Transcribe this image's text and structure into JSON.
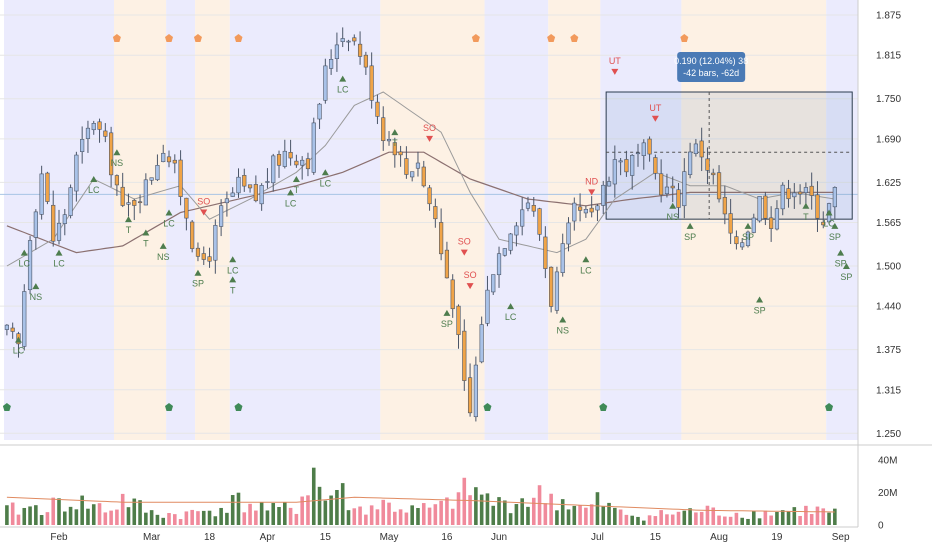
{
  "chart_data": {
    "type": "candlestick",
    "y_axis_ticks": [
      "1.875",
      "1.815",
      "1.750",
      "1.690",
      "1.625",
      "1.565",
      "1.500",
      "1.440",
      "1.375",
      "1.315",
      "1.250"
    ],
    "y_axis_values": [
      1.875,
      1.815,
      1.75,
      1.69,
      1.625,
      1.565,
      1.5,
      1.44,
      1.375,
      1.315,
      1.25
    ],
    "ylim": [
      1.24,
      1.89
    ],
    "volume_axis_ticks": [
      "40M",
      "20M",
      "0"
    ],
    "volume_axis_values": [
      40,
      20,
      0
    ],
    "volume_ylim": [
      0,
      46
    ],
    "x_axis_ticks": [
      "Feb",
      "Mar",
      "18",
      "Apr",
      "15",
      "May",
      "16",
      "Jun",
      "Jul",
      "15",
      "Aug",
      "19",
      "Sep"
    ],
    "x_axis_tick_bars": [
      9,
      25,
      35,
      45,
      55,
      66,
      76,
      85,
      102,
      112,
      123,
      133,
      144
    ],
    "bar_count": 144,
    "ohlc_anchor_closes": [
      [
        0,
        1.4
      ],
      [
        2,
        1.38
      ],
      [
        4,
        1.55
      ],
      [
        6,
        1.64
      ],
      [
        8,
        1.54
      ],
      [
        10,
        1.58
      ],
      [
        12,
        1.66
      ],
      [
        15,
        1.72
      ],
      [
        17,
        1.68
      ],
      [
        19,
        1.62
      ],
      [
        20,
        1.58
      ],
      [
        22,
        1.6
      ],
      [
        24,
        1.62
      ],
      [
        27,
        1.68
      ],
      [
        29,
        1.64
      ],
      [
        31,
        1.58
      ],
      [
        33,
        1.5
      ],
      [
        35,
        1.52
      ],
      [
        37,
        1.58
      ],
      [
        40,
        1.62
      ],
      [
        43,
        1.6
      ],
      [
        46,
        1.65
      ],
      [
        48,
        1.67
      ],
      [
        52,
        1.66
      ],
      [
        55,
        1.79
      ],
      [
        57,
        1.84
      ],
      [
        59,
        1.85
      ],
      [
        61,
        1.82
      ],
      [
        63,
        1.76
      ],
      [
        65,
        1.7
      ],
      [
        67,
        1.68
      ],
      [
        69,
        1.64
      ],
      [
        71,
        1.66
      ],
      [
        72,
        1.62
      ],
      [
        74,
        1.57
      ],
      [
        75,
        1.52
      ],
      [
        77,
        1.45
      ],
      [
        79,
        1.32
      ],
      [
        80,
        1.28
      ],
      [
        82,
        1.42
      ],
      [
        84,
        1.5
      ],
      [
        87,
        1.56
      ],
      [
        90,
        1.6
      ],
      [
        92,
        1.55
      ],
      [
        94,
        1.45
      ],
      [
        96,
        1.52
      ],
      [
        98,
        1.58
      ],
      [
        101,
        1.57
      ],
      [
        103,
        1.62
      ],
      [
        105,
        1.66
      ],
      [
        107,
        1.65
      ],
      [
        110,
        1.67
      ],
      [
        113,
        1.62
      ],
      [
        116,
        1.6
      ],
      [
        118,
        1.68
      ],
      [
        120,
        1.67
      ],
      [
        122,
        1.63
      ],
      [
        124,
        1.57
      ],
      [
        126,
        1.52
      ],
      [
        128,
        1.56
      ],
      [
        130,
        1.6
      ],
      [
        132,
        1.57
      ],
      [
        134,
        1.61
      ],
      [
        136,
        1.62
      ],
      [
        139,
        1.6
      ],
      [
        141,
        1.57
      ],
      [
        143,
        1.61
      ]
    ],
    "volume_anchor_values": [
      [
        0,
        10
      ],
      [
        6,
        12
      ],
      [
        12,
        16
      ],
      [
        18,
        10
      ],
      [
        20,
        18
      ],
      [
        25,
        8
      ],
      [
        30,
        7
      ],
      [
        35,
        10
      ],
      [
        40,
        16
      ],
      [
        46,
        10
      ],
      [
        50,
        12
      ],
      [
        53,
        36
      ],
      [
        55,
        16
      ],
      [
        57,
        26
      ],
      [
        60,
        10
      ],
      [
        65,
        14
      ],
      [
        70,
        10
      ],
      [
        75,
        12
      ],
      [
        80,
        24
      ],
      [
        85,
        14
      ],
      [
        90,
        18
      ],
      [
        93,
        20
      ],
      [
        96,
        16
      ],
      [
        100,
        10
      ],
      [
        102,
        16
      ],
      [
        106,
        8
      ],
      [
        110,
        6
      ],
      [
        115,
        8
      ],
      [
        120,
        10
      ],
      [
        125,
        8
      ],
      [
        130,
        8
      ],
      [
        135,
        10
      ],
      [
        140,
        10
      ],
      [
        143,
        8
      ]
    ],
    "volume_avg_anchors": [
      [
        0,
        17
      ],
      [
        20,
        14
      ],
      [
        50,
        14
      ],
      [
        60,
        17
      ],
      [
        80,
        15
      ],
      [
        100,
        12
      ],
      [
        120,
        9
      ],
      [
        143,
        8
      ]
    ],
    "ma_long_anchors": [
      [
        0,
        1.56
      ],
      [
        12,
        1.52
      ],
      [
        20,
        1.53
      ],
      [
        30,
        1.58
      ],
      [
        40,
        1.6
      ],
      [
        50,
        1.62
      ],
      [
        58,
        1.64
      ],
      [
        66,
        1.67
      ],
      [
        72,
        1.67
      ],
      [
        80,
        1.63
      ],
      [
        90,
        1.6
      ],
      [
        100,
        1.59
      ],
      [
        108,
        1.6
      ],
      [
        118,
        1.61
      ],
      [
        128,
        1.61
      ],
      [
        143,
        1.61
      ]
    ],
    "ma_short_anchors": [
      [
        0,
        1.5
      ],
      [
        8,
        1.54
      ],
      [
        15,
        1.63
      ],
      [
        22,
        1.6
      ],
      [
        30,
        1.62
      ],
      [
        35,
        1.57
      ],
      [
        42,
        1.6
      ],
      [
        50,
        1.64
      ],
      [
        55,
        1.68
      ],
      [
        60,
        1.74
      ],
      [
        65,
        1.76
      ],
      [
        70,
        1.73
      ],
      [
        75,
        1.7
      ],
      [
        80,
        1.61
      ],
      [
        85,
        1.54
      ],
      [
        90,
        1.53
      ],
      [
        95,
        1.52
      ],
      [
        100,
        1.54
      ],
      [
        105,
        1.6
      ],
      [
        112,
        1.64
      ],
      [
        118,
        1.62
      ],
      [
        124,
        1.62
      ],
      [
        130,
        1.6
      ],
      [
        136,
        1.61
      ],
      [
        143,
        1.6
      ]
    ],
    "session_bands": [
      {
        "from": 0,
        "to": 19,
        "color": "#ebebfd"
      },
      {
        "from": 19,
        "to": 28,
        "color": "#fdf1e4"
      },
      {
        "from": 28,
        "to": 33,
        "color": "#ebebfd"
      },
      {
        "from": 33,
        "to": 39,
        "color": "#fdf1e4"
      },
      {
        "from": 39,
        "to": 65,
        "color": "#ebebfd"
      },
      {
        "from": 65,
        "to": 83,
        "color": "#fdf1e4"
      },
      {
        "from": 83,
        "to": 94,
        "color": "#ebebfd"
      },
      {
        "from": 94,
        "to": 103,
        "color": "#fdf1e4"
      },
      {
        "from": 103,
        "to": 117,
        "color": "#ebebfd"
      },
      {
        "from": 117,
        "to": 142,
        "color": "#fdf1e4"
      },
      {
        "from": 142,
        "to": 148,
        "color": "#ebebfd"
      }
    ],
    "signals_below": [
      {
        "bar": 2,
        "label": "LC",
        "y": 1.39
      },
      {
        "bar": 3,
        "label": "LC",
        "y": 1.52
      },
      {
        "bar": 5,
        "label": "NS",
        "y": 1.47
      },
      {
        "bar": 9,
        "label": "LC",
        "y": 1.52
      },
      {
        "bar": 15,
        "label": "LC",
        "y": 1.63
      },
      {
        "bar": 19,
        "label": "NS",
        "y": 1.67
      },
      {
        "bar": 21,
        "label": "T",
        "y": 1.57
      },
      {
        "bar": 24,
        "label": "T",
        "y": 1.55
      },
      {
        "bar": 27,
        "label": "NS",
        "y": 1.53
      },
      {
        "bar": 28,
        "label": "LC",
        "y": 1.58
      },
      {
        "bar": 33,
        "label": "SP",
        "y": 1.49
      },
      {
        "bar": 39,
        "label": "LC",
        "y": 1.51
      },
      {
        "bar": 39,
        "label": "T",
        "y": 1.48
      },
      {
        "bar": 49,
        "label": "LC",
        "y": 1.61
      },
      {
        "bar": 50,
        "label": "T",
        "y": 1.63
      },
      {
        "bar": 55,
        "label": "LC",
        "y": 1.64
      },
      {
        "bar": 58,
        "label": "LC",
        "y": 1.78
      },
      {
        "bar": 67,
        "label": "T",
        "y": 1.7
      },
      {
        "bar": 76,
        "label": "SP",
        "y": 1.43
      },
      {
        "bar": 87,
        "label": "LC",
        "y": 1.44
      },
      {
        "bar": 96,
        "label": "NS",
        "y": 1.42
      },
      {
        "bar": 100,
        "label": "LC",
        "y": 1.51
      },
      {
        "bar": 115,
        "label": "NS",
        "y": 1.59
      },
      {
        "bar": 118,
        "label": "SP",
        "y": 1.56
      },
      {
        "bar": 128,
        "label": "SP",
        "y": 1.56
      },
      {
        "bar": 130,
        "label": "SP",
        "y": 1.45
      },
      {
        "bar": 138,
        "label": "T",
        "y": 1.59
      },
      {
        "bar": 142,
        "label": "LC",
        "y": 1.58
      },
      {
        "bar": 143,
        "label": "SP",
        "y": 1.56
      },
      {
        "bar": 144,
        "label": "SP",
        "y": 1.52
      },
      {
        "bar": 145,
        "label": "SP",
        "y": 1.5
      }
    ],
    "signals_above": [
      {
        "bar": 34,
        "label": "SO",
        "y": 1.58
      },
      {
        "bar": 73,
        "label": "SO",
        "y": 1.69
      },
      {
        "bar": 79,
        "label": "SO",
        "y": 1.52
      },
      {
        "bar": 80,
        "label": "SO",
        "y": 1.47
      },
      {
        "bar": 101,
        "label": "ND",
        "y": 1.61
      },
      {
        "bar": 105,
        "label": "UT",
        "y": 1.79
      },
      {
        "bar": 112,
        "label": "UT",
        "y": 1.72
      }
    ],
    "top_markers_bars": [
      19,
      28,
      33,
      40,
      81,
      94,
      98,
      117
    ],
    "bottom_markers_bars": [
      0,
      28,
      40,
      83,
      103,
      142
    ],
    "measure_box": {
      "label_line1": "0.190 (12.04%) 38",
      "label_line2": "-42 bars, -62d",
      "from_bar": 104,
      "to_bar": 146,
      "low": 1.57,
      "high": 1.76,
      "guide_level": 1.67,
      "color": "#4a7ab5"
    },
    "current_price_level": 1.607,
    "colors": {
      "up_body": "#a9c2e8",
      "down_body": "#f0a448",
      "candle_border": "#4a5568",
      "volume_up": "#4e7d49",
      "volume_down": "#f08a9b",
      "ma_long": "#8b7070",
      "ma_short": "#9a9a9a",
      "signal_green": "#4e7d4e",
      "signal_red": "#e05050",
      "top_marker": "#f29a5c",
      "bottom_marker": "#3f8a58",
      "grid": "#e6e6e6",
      "axis_line": "#cccccc"
    }
  }
}
